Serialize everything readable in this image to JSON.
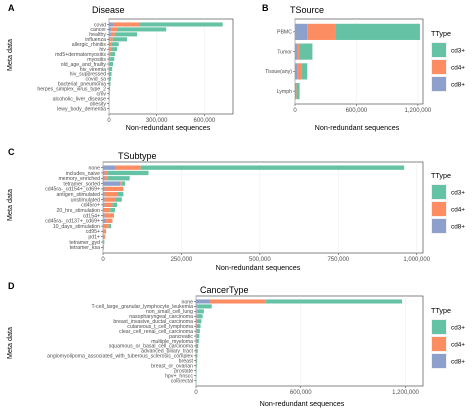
{
  "ylabel": "Meta data",
  "xlabel": "Non-redundant sequences",
  "legend": {
    "title": "TType",
    "items": [
      "cd3+",
      "cd4+",
      "cd8+"
    ]
  },
  "colors": {
    "cd3+": "#66c2a5",
    "cd4+": "#fc8d62",
    "cd8+": "#8da0cb"
  },
  "chart_data": [
    {
      "type": "bar",
      "letter": "A",
      "title": "Disease",
      "orientation": "horizontal",
      "stacked": true,
      "xlabel": "Non-redundant sequences",
      "ylabel": "Meta data",
      "xlim": [
        0,
        780000
      ],
      "xticks": [
        0,
        300000,
        600000
      ],
      "xtick_labels": [
        "0",
        "300,000",
        "600,000"
      ],
      "categories": [
        "covid",
        "cancer",
        "healthy",
        "influenza",
        "allergic_rhinitis",
        "hiv",
        "md5+dermatomyositis",
        "myositis",
        "old_age_and_frailty",
        "hiv_viremia",
        "hiv_suppressed",
        "covid_sa",
        "bacterial_pneumonia",
        "herpes_simplex_virus_type_2",
        "cmv",
        "alcoholic_liver_disease",
        "obesity",
        "lewy_body_dementia"
      ],
      "series": [
        {
          "name": "cd3+",
          "values": [
            520000,
            310000,
            140000,
            90000,
            45000,
            38000,
            30000,
            26000,
            20000,
            16000,
            13000,
            10000,
            8000,
            6000,
            4000,
            3000,
            2000,
            1000
          ]
        },
        {
          "name": "cd4+",
          "values": [
            170000,
            35000,
            25000,
            15000,
            10000,
            8000,
            5000,
            4000,
            3000,
            2000,
            1500,
            1000,
            800,
            500,
            400,
            300,
            200,
            100
          ]
        },
        {
          "name": "cd8+",
          "values": [
            25000,
            15000,
            12000,
            8000,
            6000,
            5000,
            4000,
            3000,
            3000,
            2000,
            1500,
            1000,
            800,
            500,
            400,
            300,
            200,
            100
          ]
        }
      ]
    },
    {
      "type": "bar",
      "letter": "B",
      "title": "TSource",
      "orientation": "horizontal",
      "stacked": true,
      "xlabel": "Non-redundant sequences",
      "ylabel": "",
      "xlim": [
        0,
        1250000
      ],
      "xticks": [
        0,
        600000,
        1200000
      ],
      "xtick_labels": [
        "0",
        "600,000",
        "1,200,000"
      ],
      "categories": [
        "PBMC",
        "Tumor",
        "Tissue(any)",
        "Lymph"
      ],
      "series": [
        {
          "name": "cd3+",
          "values": [
            820000,
            130000,
            60000,
            30000
          ]
        },
        {
          "name": "cd4+",
          "values": [
            280000,
            20000,
            40000,
            5000
          ]
        },
        {
          "name": "cd8+",
          "values": [
            120000,
            20000,
            20000,
            10000
          ]
        }
      ]
    },
    {
      "type": "bar",
      "letter": "C",
      "title": "TSubtype",
      "orientation": "horizontal",
      "stacked": true,
      "xlabel": "Non-redundant sequences",
      "ylabel": "Meta data",
      "xlim": [
        0,
        1020000
      ],
      "xticks": [
        0,
        250000,
        500000,
        750000,
        1000000
      ],
      "xtick_labels": [
        "0",
        "250,000",
        "500,000",
        "750,000",
        "1,000,000"
      ],
      "categories": [
        "none",
        "includes_naive",
        "memory_enriched",
        "tetramer_sorted",
        "cd45ra-_cd154+_cd69+",
        "antigen_stimulated",
        "unstimulated",
        "cd45ro+",
        "20_hrs_stimulation",
        "cd154+",
        "cd45ra-_cd137+_cd69+",
        "10_days_stimulation",
        "cd95+",
        "pd1+",
        "tetramer_gyd",
        "tetramer_ksa"
      ],
      "series": [
        {
          "name": "cd3+",
          "values": [
            840000,
            130000,
            70000,
            10000,
            0,
            20000,
            20000,
            15000,
            15000,
            0,
            0,
            8000,
            2000,
            1500,
            1000,
            500
          ]
        },
        {
          "name": "cd4+",
          "values": [
            80000,
            10000,
            10000,
            5000,
            60000,
            40000,
            35000,
            25000,
            20000,
            30000,
            20000,
            15000,
            5000,
            3000,
            1000,
            500
          ]
        },
        {
          "name": "cd8+",
          "values": [
            40000,
            5000,
            5000,
            55000,
            5000,
            5000,
            5000,
            5000,
            3000,
            5000,
            10000,
            3000,
            3000,
            3000,
            2000,
            1000
          ]
        }
      ]
    },
    {
      "type": "bar",
      "letter": "D",
      "title": "CancerType",
      "orientation": "horizontal",
      "stacked": true,
      "xlabel": "Non-redundant sequences",
      "ylabel": "Meta data",
      "xlim": [
        0,
        1300000
      ],
      "xticks": [
        0,
        600000,
        1200000
      ],
      "xtick_labels": [
        "0",
        "600,000",
        "1,200,000"
      ],
      "categories": [
        "none",
        "T-cell_large_granular_lymphocyte_leukemia",
        "non_small_cell_lung",
        "nasopharyngeal_carcinoma",
        "breast_invasive_ductal_carcinoma",
        "cutaneous_t_cell_lymphoma",
        "clear_cell_renal_cell_carcinoma",
        "pancreatic",
        "multiple_myeloma",
        "squamous_or_basal_cell_carcinoma",
        "advanced_biliary_tract",
        "angiomyolipoma_associated_with_tuberous_sclerosis_complex",
        "breast",
        "breast_or_ovarian",
        "prostate",
        "hpv+_hnscc",
        "colorectal"
      ],
      "series": [
        {
          "name": "cd3+",
          "values": [
            780000,
            80000,
            35000,
            30000,
            25000,
            20000,
            18000,
            15000,
            12000,
            10000,
            8000,
            6000,
            5000,
            4000,
            3000,
            2000,
            1500
          ]
        },
        {
          "name": "cd4+",
          "values": [
            320000,
            5000,
            5000,
            4000,
            3000,
            3000,
            2000,
            2000,
            2000,
            1500,
            1000,
            1000,
            800,
            500,
            400,
            300,
            200
          ]
        },
        {
          "name": "cd8+",
          "values": [
            80000,
            5000,
            5000,
            4000,
            3000,
            3000,
            2000,
            2000,
            2000,
            1500,
            1000,
            1000,
            800,
            500,
            400,
            300,
            200
          ]
        }
      ]
    }
  ]
}
